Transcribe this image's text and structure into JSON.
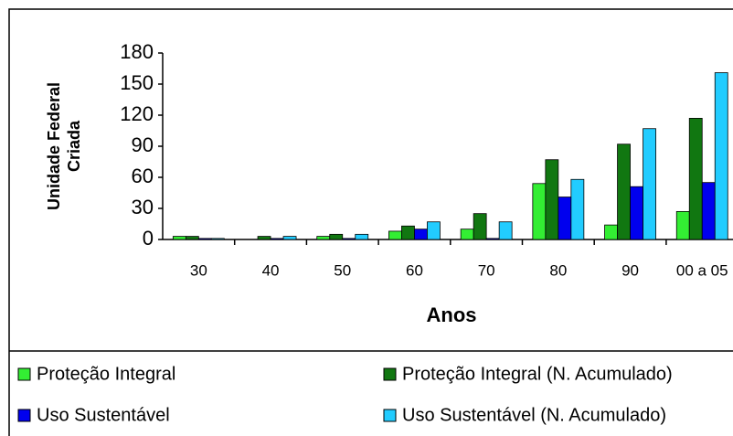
{
  "chart_data": {
    "type": "bar",
    "y_label": [
      "Unidade Federal",
      "Criada"
    ],
    "x_label": "Anos",
    "categories": [
      "30",
      "40",
      "50",
      "60",
      "70",
      "80",
      "90",
      "00 a 05"
    ],
    "series": [
      {
        "name": "Proteção Integral",
        "color": "#33ee33",
        "values": [
          3,
          0,
          3,
          8,
          10,
          54,
          14,
          27
        ]
      },
      {
        "name": "Proteção Integral (N. Acumulado)",
        "color": "#117711",
        "values": [
          3,
          3,
          5,
          13,
          25,
          77,
          92,
          117
        ]
      },
      {
        "name": "Uso Sustentável",
        "color": "#0000ee",
        "values": [
          1,
          1,
          1,
          10,
          1,
          41,
          51,
          55
        ]
      },
      {
        "name": "Uso Sustentável (N. Acumulado)",
        "color": "#22ccff",
        "values": [
          1,
          3,
          5,
          17,
          17,
          58,
          107,
          161
        ]
      }
    ],
    "ylim": [
      0,
      180
    ],
    "yticks": [
      0,
      30,
      60,
      90,
      120,
      150,
      180
    ],
    "grid": false
  }
}
